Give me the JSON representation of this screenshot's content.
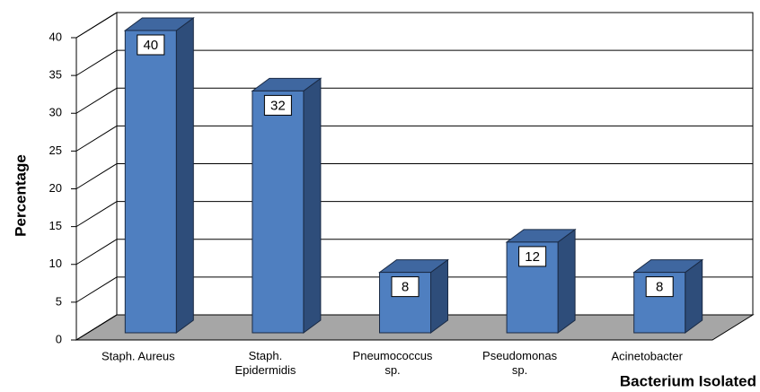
{
  "chart_data": {
    "type": "bar3d",
    "x_label": "Bacterium Isolated",
    "y_label": "Percentage",
    "categories": [
      "Staph. Aureus",
      "Staph.\nEpidermidis",
      "Pneumococcus\nsp.",
      "Pseudomonas\nsp.",
      "Acinetobacter"
    ],
    "values": [
      40,
      32,
      8,
      12,
      8
    ],
    "color": "#4f7fc0",
    "ylim": [
      0,
      40
    ],
    "yticks": [
      0,
      5,
      10,
      15,
      20,
      25,
      30,
      35,
      40
    ],
    "grid": true
  }
}
